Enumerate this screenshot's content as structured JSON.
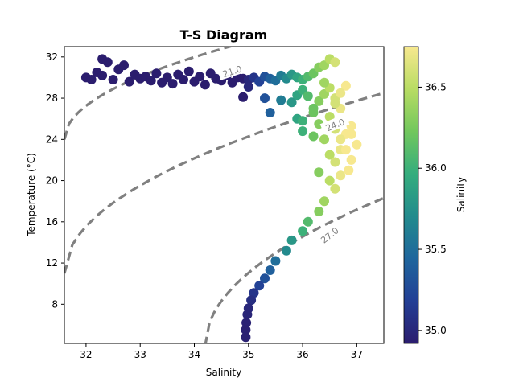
{
  "chart_data": {
    "type": "scatter",
    "title": "T-S Diagram",
    "xlabel": "Salinity",
    "ylabel": "Temperature (°C)",
    "xlim": [
      31.6,
      37.5
    ],
    "ylim": [
      4.2,
      33
    ],
    "xticks": [
      "32",
      "33",
      "34",
      "35",
      "36",
      "37"
    ],
    "yticks": [
      "8",
      "12",
      "16",
      "20",
      "24",
      "28",
      "32"
    ],
    "grid": false,
    "colorbar": {
      "label": "Salinity",
      "range": [
        34.92,
        36.75
      ],
      "ticks": [
        "35.0",
        "35.5",
        "36.0",
        "36.5"
      ],
      "colormap": "viridis-like",
      "stops": [
        "#2b1d6e",
        "#233f95",
        "#1f669d",
        "#238b8d",
        "#35ad7d",
        "#72c75d",
        "#b8dc63",
        "#f7e88f"
      ]
    },
    "density_contours": [
      {
        "label": "21.0",
        "style": "dashed",
        "color": "#808080"
      },
      {
        "label": "24.0",
        "style": "dashed",
        "color": "#808080"
      },
      {
        "label": "27.0",
        "style": "dashed",
        "color": "#808080"
      }
    ],
    "series": [
      {
        "points": [
          [
            32.0,
            30.0
          ],
          [
            32.1,
            29.8
          ],
          [
            32.2,
            30.5
          ],
          [
            32.3,
            31.8
          ],
          [
            32.4,
            31.5
          ],
          [
            32.3,
            30.2
          ],
          [
            32.5,
            29.8
          ],
          [
            32.6,
            30.8
          ],
          [
            32.7,
            31.2
          ],
          [
            32.8,
            29.6
          ],
          [
            32.9,
            30.3
          ],
          [
            33.0,
            29.9
          ],
          [
            33.1,
            30.1
          ],
          [
            33.2,
            29.7
          ],
          [
            33.3,
            30.4
          ],
          [
            33.4,
            29.5
          ],
          [
            33.5,
            30.0
          ],
          [
            33.6,
            29.4
          ],
          [
            33.7,
            30.3
          ],
          [
            33.8,
            29.8
          ],
          [
            33.9,
            30.6
          ],
          [
            34.0,
            29.6
          ],
          [
            34.1,
            30.1
          ],
          [
            34.2,
            29.3
          ],
          [
            34.3,
            30.4
          ],
          [
            34.4,
            29.9
          ],
          [
            34.5,
            29.7
          ],
          [
            34.6,
            30.2
          ],
          [
            34.7,
            29.5
          ],
          [
            34.8,
            30.0
          ],
          [
            34.9,
            29.9
          ],
          [
            35.0,
            29.8
          ],
          [
            35.1,
            30.0
          ],
          [
            35.2,
            29.6
          ],
          [
            35.3,
            30.1
          ],
          [
            35.4,
            29.9
          ],
          [
            35.5,
            29.7
          ],
          [
            35.6,
            30.2
          ],
          [
            35.7,
            29.9
          ],
          [
            35.8,
            30.3
          ],
          [
            35.9,
            30.0
          ],
          [
            36.0,
            29.8
          ],
          [
            36.1,
            30.1
          ],
          [
            36.2,
            30.4
          ],
          [
            36.3,
            31.0
          ],
          [
            36.4,
            31.2
          ],
          [
            36.5,
            31.8
          ],
          [
            36.6,
            31.5
          ],
          [
            34.9,
            28.1
          ],
          [
            35.0,
            29.1
          ],
          [
            35.3,
            28.0
          ],
          [
            35.4,
            26.6
          ],
          [
            35.6,
            27.8
          ],
          [
            35.8,
            27.6
          ],
          [
            35.9,
            28.3
          ],
          [
            36.0,
            28.8
          ],
          [
            36.1,
            28.2
          ],
          [
            36.2,
            26.6
          ],
          [
            36.3,
            27.7
          ],
          [
            36.4,
            28.4
          ],
          [
            36.5,
            29.0
          ],
          [
            36.6,
            28.0
          ],
          [
            36.7,
            27.0
          ],
          [
            36.8,
            29.2
          ],
          [
            36.0,
            24.8
          ],
          [
            36.2,
            24.3
          ],
          [
            36.3,
            25.5
          ],
          [
            36.4,
            24.0
          ],
          [
            36.5,
            22.5
          ],
          [
            36.6,
            21.8
          ],
          [
            36.7,
            23.0
          ],
          [
            36.8,
            24.5
          ],
          [
            36.3,
            20.8
          ],
          [
            36.5,
            20.0
          ],
          [
            36.6,
            19.2
          ],
          [
            36.4,
            18.0
          ],
          [
            36.3,
            17.0
          ],
          [
            36.1,
            16.0
          ],
          [
            36.0,
            15.1
          ],
          [
            35.8,
            14.2
          ],
          [
            35.7,
            13.2
          ],
          [
            35.5,
            12.2
          ],
          [
            35.4,
            11.3
          ],
          [
            35.3,
            10.5
          ],
          [
            35.2,
            9.8
          ],
          [
            35.1,
            9.1
          ],
          [
            35.05,
            8.4
          ],
          [
            35.0,
            7.6
          ],
          [
            34.98,
            7.0
          ],
          [
            34.96,
            6.2
          ],
          [
            34.95,
            5.5
          ],
          [
            34.95,
            4.8
          ],
          [
            36.6,
            25.0
          ],
          [
            36.7,
            24.0
          ],
          [
            36.8,
            23.0
          ],
          [
            36.9,
            22.0
          ],
          [
            36.85,
            21.0
          ],
          [
            36.7,
            20.5
          ],
          [
            36.9,
            24.5
          ],
          [
            37.0,
            23.5
          ],
          [
            36.9,
            25.3
          ],
          [
            36.5,
            26.2
          ],
          [
            36.6,
            27.5
          ],
          [
            36.7,
            28.5
          ],
          [
            36.4,
            29.5
          ],
          [
            36.2,
            27.0
          ],
          [
            35.9,
            26.0
          ],
          [
            36.0,
            25.8
          ]
        ]
      }
    ]
  }
}
